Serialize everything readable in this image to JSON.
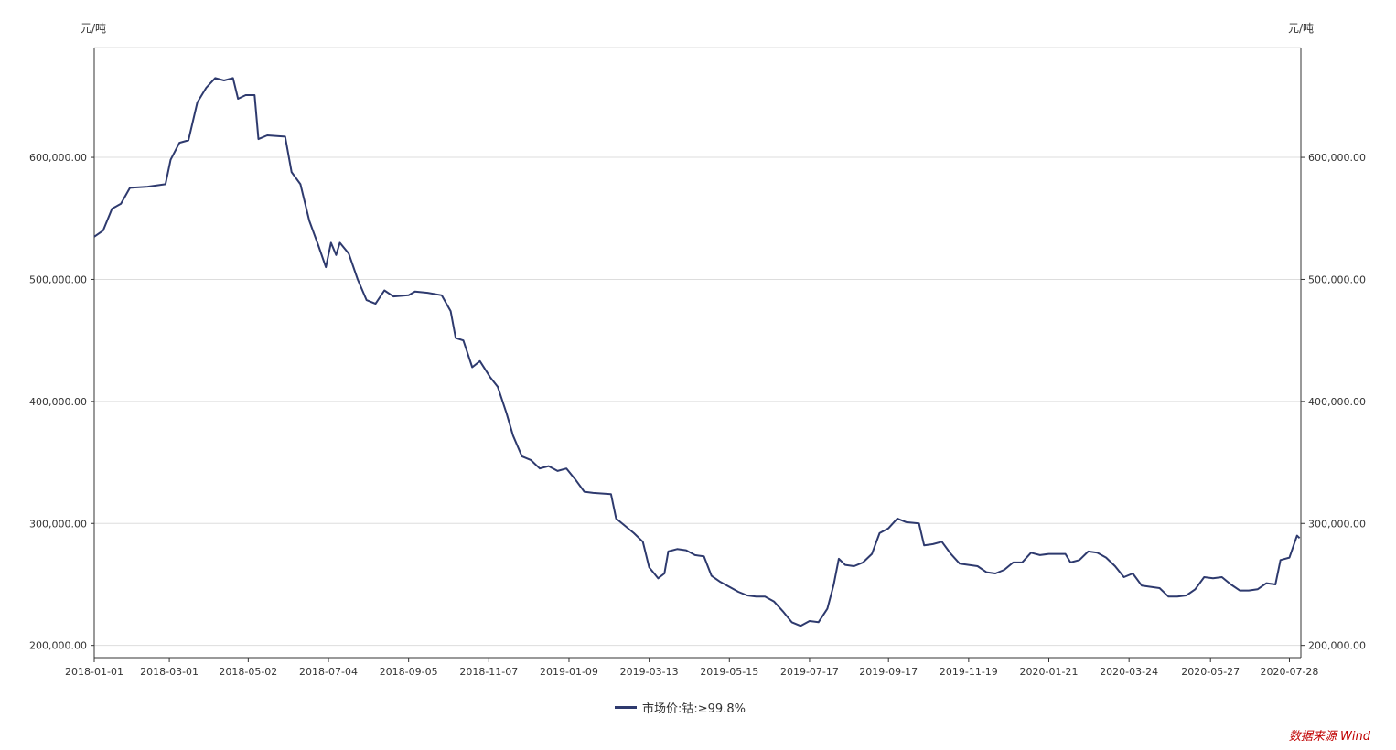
{
  "chart_data": {
    "type": "line",
    "y_unit_left": "元/吨",
    "y_unit_right": "元/吨",
    "ylim": [
      190000,
      690000
    ],
    "yticks": [
      200000,
      300000,
      400000,
      500000,
      600000
    ],
    "ytick_labels": [
      "200,000.00",
      "300,000.00",
      "400,000.00",
      "500,000.00",
      "600,000.00"
    ],
    "xlim": [
      "2018-01-01",
      "2020-08-06"
    ],
    "xtick_labels": [
      "2018-01-01",
      "2018-03-01",
      "2018-05-02",
      "2018-07-04",
      "2018-09-05",
      "2018-11-07",
      "2019-01-09",
      "2019-03-13",
      "2019-05-15",
      "2019-07-17",
      "2019-09-17",
      "2019-11-19",
      "2020-01-21",
      "2020-03-24",
      "2020-05-27",
      "2020-07-28"
    ],
    "grid": true,
    "legend_position": "bottom-center",
    "series": [
      {
        "name": "市场价:钴:≥99.8%",
        "color": "#2e3a6e",
        "points": [
          [
            "2018-01-01",
            535000
          ],
          [
            "2018-01-08",
            540000
          ],
          [
            "2018-01-15",
            558000
          ],
          [
            "2018-01-22",
            562000
          ],
          [
            "2018-01-29",
            575000
          ],
          [
            "2018-02-12",
            576000
          ],
          [
            "2018-02-26",
            578000
          ],
          [
            "2018-03-02",
            598000
          ],
          [
            "2018-03-09",
            612000
          ],
          [
            "2018-03-16",
            614000
          ],
          [
            "2018-03-23",
            645000
          ],
          [
            "2018-03-30",
            657000
          ],
          [
            "2018-04-06",
            665000
          ],
          [
            "2018-04-13",
            663000
          ],
          [
            "2018-04-20",
            665000
          ],
          [
            "2018-04-24",
            648000
          ],
          [
            "2018-04-30",
            651000
          ],
          [
            "2018-05-07",
            651000
          ],
          [
            "2018-05-10",
            615000
          ],
          [
            "2018-05-17",
            618000
          ],
          [
            "2018-05-31",
            617000
          ],
          [
            "2018-06-05",
            588000
          ],
          [
            "2018-06-12",
            578000
          ],
          [
            "2018-06-19",
            548000
          ],
          [
            "2018-06-26",
            528000
          ],
          [
            "2018-07-02",
            510000
          ],
          [
            "2018-07-06",
            530000
          ],
          [
            "2018-07-10",
            520000
          ],
          [
            "2018-07-13",
            530000
          ],
          [
            "2018-07-20",
            521000
          ],
          [
            "2018-07-27",
            500000
          ],
          [
            "2018-08-03",
            483000
          ],
          [
            "2018-08-10",
            480000
          ],
          [
            "2018-08-17",
            491000
          ],
          [
            "2018-08-24",
            486000
          ],
          [
            "2018-09-05",
            487000
          ],
          [
            "2018-09-10",
            490000
          ],
          [
            "2018-09-20",
            489000
          ],
          [
            "2018-10-01",
            487000
          ],
          [
            "2018-10-08",
            474000
          ],
          [
            "2018-10-12",
            452000
          ],
          [
            "2018-10-18",
            450000
          ],
          [
            "2018-10-25",
            428000
          ],
          [
            "2018-10-31",
            433000
          ],
          [
            "2018-11-08",
            420000
          ],
          [
            "2018-11-14",
            412000
          ],
          [
            "2018-11-21",
            390000
          ],
          [
            "2018-11-26",
            372000
          ],
          [
            "2018-12-03",
            355000
          ],
          [
            "2018-12-10",
            352000
          ],
          [
            "2018-12-17",
            345000
          ],
          [
            "2018-12-24",
            347000
          ],
          [
            "2018-12-31",
            343000
          ],
          [
            "2019-01-07",
            345000
          ],
          [
            "2019-01-14",
            336000
          ],
          [
            "2019-01-21",
            326000
          ],
          [
            "2019-01-28",
            325000
          ],
          [
            "2019-02-11",
            324000
          ],
          [
            "2019-02-15",
            304000
          ],
          [
            "2019-02-22",
            298000
          ],
          [
            "2019-03-01",
            292000
          ],
          [
            "2019-03-08",
            285000
          ],
          [
            "2019-03-13",
            264000
          ],
          [
            "2019-03-20",
            255000
          ],
          [
            "2019-03-25",
            259000
          ],
          [
            "2019-03-28",
            277000
          ],
          [
            "2019-04-04",
            279000
          ],
          [
            "2019-04-11",
            278000
          ],
          [
            "2019-04-18",
            274000
          ],
          [
            "2019-04-25",
            273000
          ],
          [
            "2019-05-01",
            257000
          ],
          [
            "2019-05-08",
            252000
          ],
          [
            "2019-05-15",
            248000
          ],
          [
            "2019-05-22",
            244000
          ],
          [
            "2019-05-29",
            241000
          ],
          [
            "2019-06-05",
            240000
          ],
          [
            "2019-06-12",
            240000
          ],
          [
            "2019-06-19",
            236000
          ],
          [
            "2019-06-26",
            228000
          ],
          [
            "2019-07-03",
            219000
          ],
          [
            "2019-07-10",
            216000
          ],
          [
            "2019-07-17",
            220000
          ],
          [
            "2019-07-24",
            219000
          ],
          [
            "2019-07-31",
            230000
          ],
          [
            "2019-08-05",
            250000
          ],
          [
            "2019-08-09",
            271000
          ],
          [
            "2019-08-14",
            266000
          ],
          [
            "2019-08-21",
            265000
          ],
          [
            "2019-08-28",
            268000
          ],
          [
            "2019-09-04",
            275000
          ],
          [
            "2019-09-10",
            292000
          ],
          [
            "2019-09-17",
            296000
          ],
          [
            "2019-09-24",
            304000
          ],
          [
            "2019-10-01",
            301000
          ],
          [
            "2019-10-11",
            300000
          ],
          [
            "2019-10-15",
            282000
          ],
          [
            "2019-10-22",
            283000
          ],
          [
            "2019-10-29",
            285000
          ],
          [
            "2019-11-05",
            275000
          ],
          [
            "2019-11-12",
            267000
          ],
          [
            "2019-11-19",
            266000
          ],
          [
            "2019-11-26",
            265000
          ],
          [
            "2019-12-03",
            260000
          ],
          [
            "2019-12-10",
            259000
          ],
          [
            "2019-12-17",
            262000
          ],
          [
            "2019-12-24",
            268000
          ],
          [
            "2019-12-31",
            268000
          ],
          [
            "2020-01-07",
            276000
          ],
          [
            "2020-01-14",
            274000
          ],
          [
            "2020-01-21",
            275000
          ],
          [
            "2020-02-03",
            275000
          ],
          [
            "2020-02-07",
            268000
          ],
          [
            "2020-02-14",
            270000
          ],
          [
            "2020-02-21",
            277000
          ],
          [
            "2020-02-28",
            276000
          ],
          [
            "2020-03-06",
            272000
          ],
          [
            "2020-03-13",
            265000
          ],
          [
            "2020-03-20",
            256000
          ],
          [
            "2020-03-27",
            259000
          ],
          [
            "2020-04-03",
            249000
          ],
          [
            "2020-04-10",
            248000
          ],
          [
            "2020-04-17",
            247000
          ],
          [
            "2020-04-24",
            240000
          ],
          [
            "2020-05-01",
            240000
          ],
          [
            "2020-05-08",
            241000
          ],
          [
            "2020-05-15",
            246000
          ],
          [
            "2020-05-22",
            256000
          ],
          [
            "2020-05-29",
            255000
          ],
          [
            "2020-06-05",
            256000
          ],
          [
            "2020-06-12",
            250000
          ],
          [
            "2020-06-19",
            245000
          ],
          [
            "2020-06-26",
            245000
          ],
          [
            "2020-07-03",
            246000
          ],
          [
            "2020-07-10",
            251000
          ],
          [
            "2020-07-17",
            250000
          ],
          [
            "2020-07-21",
            270000
          ],
          [
            "2020-07-28",
            272000
          ],
          [
            "2020-08-03",
            290000
          ],
          [
            "2020-08-05",
            288000
          ]
        ]
      }
    ]
  },
  "source_label": "数据来源 Wind"
}
